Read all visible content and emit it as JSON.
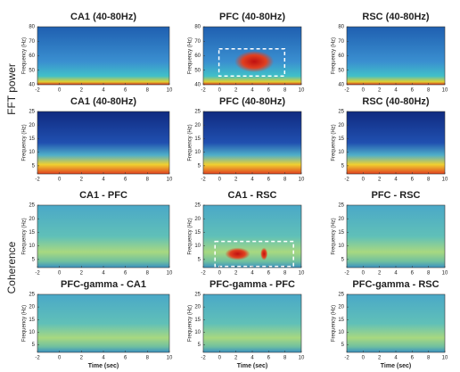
{
  "row_labels": [
    "FFT power",
    "Coherence"
  ],
  "panels": [
    {
      "title": "CA1 (40-80Hz)",
      "ylabel": "Frequency (Hz)",
      "xlim": [
        -2,
        10
      ],
      "ylim": [
        40,
        80
      ],
      "xticks": [
        -2,
        0,
        2,
        4,
        6,
        8,
        10
      ],
      "yticks": [
        40,
        50,
        60,
        70,
        80
      ]
    },
    {
      "title": "PFC (40-80Hz)",
      "ylabel": "Frequency (Hz)",
      "xlim": [
        -2,
        10
      ],
      "ylim": [
        40,
        80
      ],
      "xticks": [
        -2,
        0,
        2,
        4,
        6,
        8,
        10
      ],
      "yticks": [
        40,
        50,
        60,
        70,
        80
      ]
    },
    {
      "title": "RSC (40-80Hz)",
      "ylabel": "Frequency (Hz)",
      "xlim": [
        -2,
        10
      ],
      "ylim": [
        40,
        80
      ],
      "xticks": [
        -2,
        0,
        2,
        4,
        6,
        8,
        10
      ],
      "yticks": [
        40,
        50,
        60,
        70,
        80
      ]
    },
    {
      "title": "CA1 (40-80Hz)",
      "ylabel": "Frequency (Hz)",
      "xlim": [
        -2,
        10
      ],
      "ylim": [
        2,
        25
      ],
      "xticks": [
        -2,
        0,
        2,
        4,
        6,
        8,
        10
      ],
      "yticks": [
        5,
        10,
        15,
        20,
        25
      ]
    },
    {
      "title": "PFC (40-80Hz)",
      "ylabel": "Frequency (Hz)",
      "xlim": [
        -2,
        10
      ],
      "ylim": [
        2,
        25
      ],
      "xticks": [
        -2,
        0,
        2,
        4,
        6,
        8,
        10
      ],
      "yticks": [
        5,
        10,
        15,
        20,
        25
      ]
    },
    {
      "title": "RSC (40-80Hz)",
      "ylabel": "Frequency (Hz)",
      "xlim": [
        -2,
        10
      ],
      "ylim": [
        2,
        25
      ],
      "xticks": [
        -2,
        0,
        2,
        4,
        6,
        8,
        10
      ],
      "yticks": [
        5,
        10,
        15,
        20,
        25
      ]
    },
    {
      "title": "CA1 - PFC",
      "ylabel": "Frequency (Hz)",
      "xlim": [
        -2,
        10
      ],
      "ylim": [
        2,
        25
      ],
      "xticks": [
        -2,
        0,
        2,
        4,
        6,
        8,
        10
      ],
      "yticks": [
        5,
        10,
        15,
        20,
        25
      ]
    },
    {
      "title": "CA1 - RSC",
      "ylabel": "Frequency (Hz)",
      "xlim": [
        -2,
        10
      ],
      "ylim": [
        2,
        25
      ],
      "xticks": [
        -2,
        0,
        2,
        4,
        6,
        8,
        10
      ],
      "yticks": [
        5,
        10,
        15,
        20,
        25
      ]
    },
    {
      "title": "PFC - RSC",
      "ylabel": "Frequency (Hz)",
      "xlim": [
        -2,
        10
      ],
      "ylim": [
        2,
        25
      ],
      "xticks": [
        -2,
        0,
        2,
        4,
        6,
        8,
        10
      ],
      "yticks": [
        5,
        10,
        15,
        20,
        25
      ]
    },
    {
      "title": "PFC-gamma - CA1",
      "ylabel": "Frequency (Hz)",
      "xlabel": "Time (sec)",
      "xlim": [
        -2,
        10
      ],
      "ylim": [
        2,
        25
      ],
      "xticks": [
        -2,
        0,
        2,
        4,
        6,
        8,
        10
      ],
      "yticks": [
        5,
        10,
        15,
        20,
        25
      ]
    },
    {
      "title": "PFC-gamma - PFC",
      "ylabel": "Frequency (Hz)",
      "xlabel": "Time (sec)",
      "xlim": [
        -2,
        10
      ],
      "ylim": [
        2,
        25
      ],
      "xticks": [
        -2,
        0,
        2,
        4,
        6,
        8,
        10
      ],
      "yticks": [
        5,
        10,
        15,
        20,
        25
      ]
    },
    {
      "title": "PFC-gamma - RSC",
      "ylabel": "Frequency (Hz)",
      "xlabel": "Time (sec)",
      "xlim": [
        -2,
        10
      ],
      "ylim": [
        2,
        25
      ],
      "xticks": [
        -2,
        0,
        2,
        4,
        6,
        8,
        10
      ],
      "yticks": [
        5,
        10,
        15,
        20,
        25
      ]
    }
  ]
}
